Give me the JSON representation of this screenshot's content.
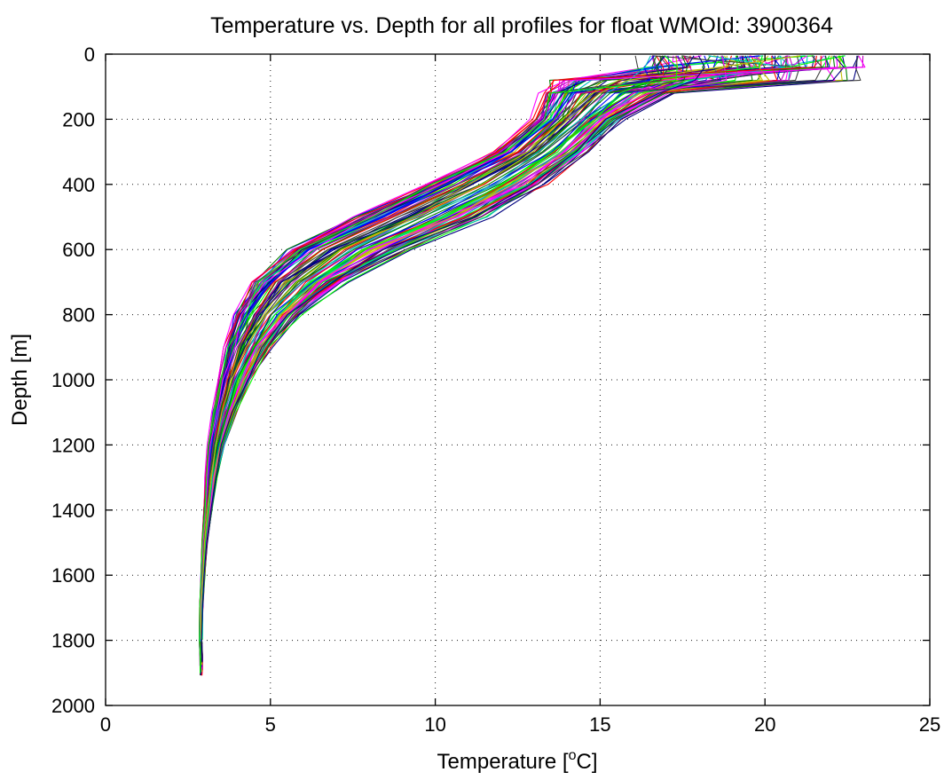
{
  "chart_data": {
    "type": "line",
    "title": "Temperature vs. Depth for all profiles for float WMOId: 3900364",
    "xlabel": "Temperature [°C]",
    "xlabel_main": "Temperature [",
    "xlabel_sup": "o",
    "xlabel_end": "C]",
    "ylabel": "Depth [m]",
    "xlim": [
      0,
      25
    ],
    "ylim": [
      0,
      2000
    ],
    "y_reversed": true,
    "grid": true,
    "x_ticks": [
      "0",
      "5",
      "10",
      "15",
      "20",
      "25"
    ],
    "y_ticks": [
      "0",
      "200",
      "400",
      "600",
      "800",
      "1000",
      "1200",
      "1400",
      "1600",
      "1800",
      "2000"
    ],
    "series_colors": [
      "#0000ff",
      "#ff0000",
      "#008000",
      "#00bfbf",
      "#bf00bf",
      "#bfbf00",
      "#404040",
      "#ff00ff",
      "#00ff00",
      "#000080"
    ],
    "representative_profile": {
      "depth": [
        5,
        40,
        80,
        120,
        200,
        300,
        400,
        500,
        600,
        700,
        800,
        900,
        1000,
        1100,
        1200,
        1300,
        1400,
        1500,
        1600,
        1700,
        1800,
        1850
      ],
      "temperature": [
        19.5,
        18.5,
        16.0,
        15.2,
        14.3,
        13.2,
        11.5,
        9.5,
        7.3,
        5.8,
        4.9,
        4.3,
        3.9,
        3.6,
        3.35,
        3.2,
        3.1,
        3.0,
        2.95,
        2.9,
        2.88,
        2.9
      ]
    },
    "temperature_spread": [
      3.0,
      3.0,
      2.5,
      2.0,
      1.3,
      1.4,
      1.8,
      2.0,
      1.8,
      1.4,
      1.0,
      0.7,
      0.5,
      0.35,
      0.25,
      0.18,
      0.12,
      0.08,
      0.06,
      0.05,
      0.04,
      0.04
    ],
    "profile_count": 110
  }
}
